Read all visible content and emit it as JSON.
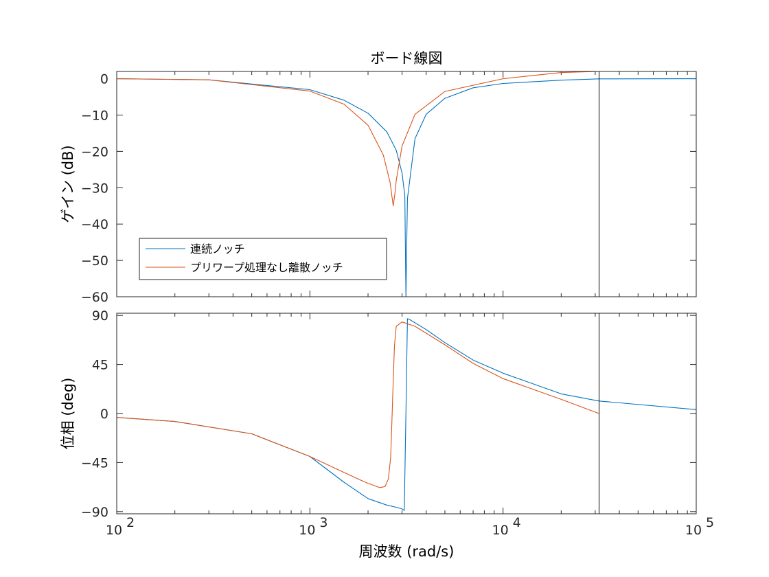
{
  "chart_data": {
    "type": "line",
    "title": "ボード線図",
    "xlabel": "周波数  (rad/s)",
    "xscale": "log",
    "xlim": [
      100,
      100000
    ],
    "x_tick_labels": [
      {
        "base": "10",
        "exp": "2"
      },
      {
        "base": "10",
        "exp": "3"
      },
      {
        "base": "10",
        "exp": "4"
      },
      {
        "base": "10",
        "exp": "5"
      }
    ],
    "nyquist_frequency": 31416,
    "colors": {
      "continuous": "#0072BD",
      "discrete": "#D95319",
      "nyquist_line": "#000000"
    },
    "legend": {
      "placement": "lower-left of magnitude plot",
      "entries": [
        "連続ノッチ",
        "プリワープ処理なし離散ノッチ"
      ]
    },
    "magnitude": {
      "ylabel": "ゲイン (dB)",
      "ylim": [
        -60,
        2
      ],
      "y_ticks": [
        "0",
        "-10",
        "-20",
        "-30",
        "-40",
        "-50",
        "-60"
      ],
      "series": [
        {
          "name": "連続ノッチ",
          "x": [
            100,
            300,
            1000,
            1500,
            2000,
            2500,
            2800,
            3000,
            3100,
            3142,
            3200,
            3500,
            4000,
            5000,
            7000,
            10000,
            20000,
            31416,
            100000
          ],
          "y": [
            0,
            -0.3,
            -3,
            -5.9,
            -9.5,
            -14.6,
            -19.7,
            -26,
            -32.2,
            -60,
            -33,
            -16.5,
            -9.8,
            -5.4,
            -2.5,
            -1.3,
            -0.4,
            -0.05,
            0
          ]
        },
        {
          "name": "プリワープ処理なし離散ノッチ",
          "x": [
            100,
            300,
            1000,
            1500,
            2000,
            2400,
            2600,
            2700,
            2750,
            2800,
            3000,
            3500,
            5000,
            10000,
            20000,
            31416
          ],
          "y": [
            0,
            -0.3,
            -3.4,
            -7,
            -12.8,
            -21,
            -28.5,
            -35,
            -32,
            -28,
            -18.5,
            -9.8,
            -3.5,
            0,
            1.7,
            2
          ]
        }
      ]
    },
    "phase": {
      "ylabel": "位相 (deg)",
      "ylim": [
        -92,
        92
      ],
      "y_ticks": [
        "90",
        "45",
        "0",
        "-45",
        "-90"
      ],
      "series": [
        {
          "name": "連続ノッチ",
          "x": [
            100,
            200,
            500,
            1000,
            1500,
            2000,
            2500,
            2800,
            3000,
            3080,
            3142,
            3200,
            3300,
            4000,
            5000,
            7000,
            10000,
            20000,
            31416,
            100000
          ],
          "y": [
            -3.6,
            -7.3,
            -18.6,
            -39.4,
            -63,
            -78,
            -84,
            -86,
            -87.5,
            -89,
            0,
            87,
            86,
            77,
            65,
            49,
            37,
            18,
            11.5,
            3.6
          ]
        },
        {
          "name": "プリワープ処理なし離散ノッチ",
          "x": [
            100,
            200,
            500,
            1000,
            1500,
            1800,
            2000,
            2300,
            2450,
            2550,
            2620,
            2660,
            2700,
            2740,
            2800,
            3000,
            3500,
            5000,
            7000,
            10000,
            20000,
            31416
          ],
          "y": [
            -3.6,
            -7.3,
            -18.6,
            -39.4,
            -54,
            -60.5,
            -64,
            -68,
            -67,
            -60,
            -40,
            -5,
            30,
            62,
            80,
            84,
            80,
            63,
            46,
            32,
            13,
            0
          ]
        }
      ]
    }
  }
}
